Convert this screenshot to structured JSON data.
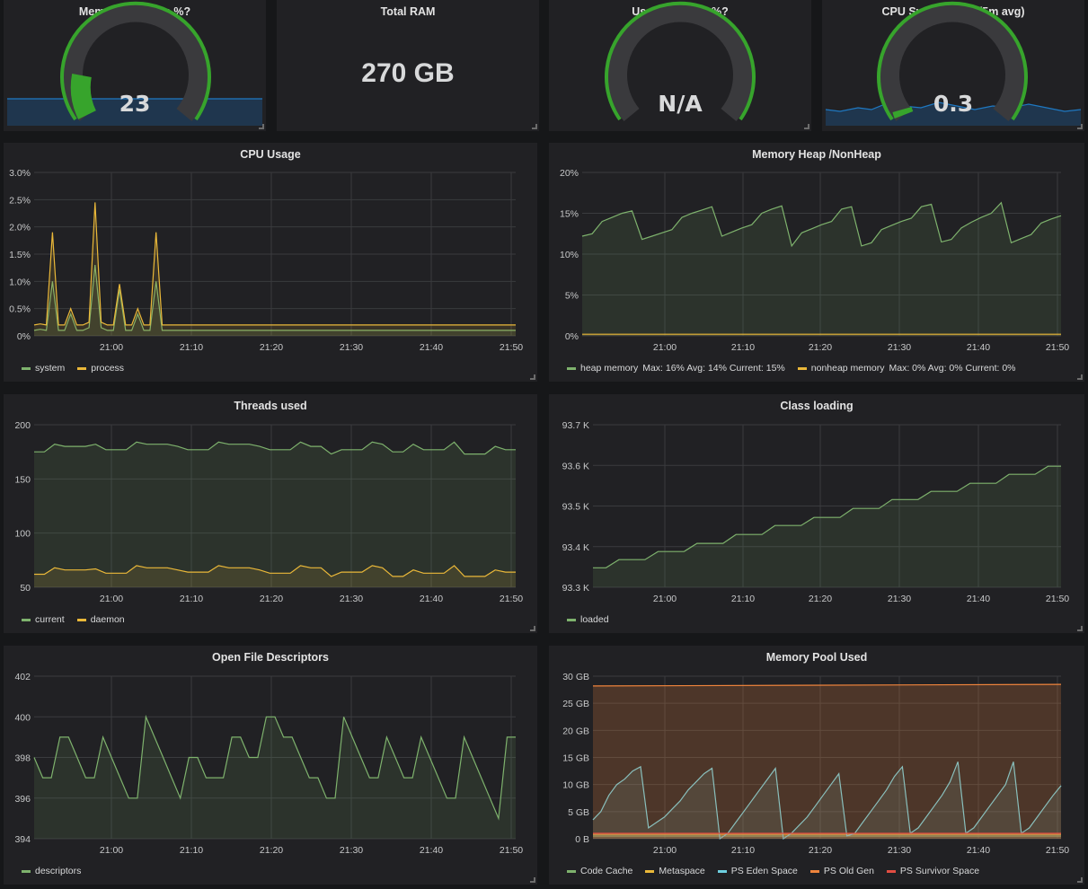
{
  "colors": {
    "green": "#7eb26d",
    "yellow": "#eab839",
    "cyan": "#6ed0e0",
    "orange": "#ef843c",
    "red": "#e24d42",
    "gauge_green": "#37a42c",
    "sparkline_blue": "#1f78c1"
  },
  "stats": {
    "memory_usage": {
      "title": "Memory usage in %?",
      "value": "23",
      "gauge_fraction": 0.23
    },
    "total_ram": {
      "title": "Total RAM",
      "value": "270 GB"
    },
    "used_swap": {
      "title": "Used SWAP in %?",
      "value": "N/A"
    },
    "cpu_load": {
      "title": "CPU System Load(5m avg)",
      "value": "0.3",
      "gauge_fraction": 0.04
    }
  },
  "chart_data": [
    {
      "id": "cpu",
      "title": "CPU Usage",
      "type": "line",
      "ylim": [
        0,
        3.0
      ],
      "yticks": [
        "0%",
        "0.5%",
        "1.0%",
        "1.5%",
        "2.0%",
        "2.5%",
        "3.0%"
      ],
      "xticks": [
        "21:00",
        "21:10",
        "21:20",
        "21:30",
        "21:40",
        "21:50"
      ],
      "series": [
        {
          "name": "system",
          "color": "#7eb26d",
          "values": [
            0.1,
            0.12,
            0.1,
            1.0,
            0.1,
            0.1,
            0.4,
            0.1,
            0.1,
            0.15,
            1.3,
            0.15,
            0.1,
            0.1,
            0.85,
            0.1,
            0.1,
            0.4,
            0.1,
            0.1,
            1.0,
            0.1,
            0.1,
            0.1,
            0.1,
            0.1,
            0.1,
            0.1,
            0.1,
            0.1,
            0.1,
            0.1,
            0.1,
            0.1,
            0.1,
            0.1,
            0.1,
            0.1,
            0.1,
            0.1,
            0.1,
            0.1,
            0.1,
            0.1,
            0.1,
            0.1,
            0.1,
            0.1,
            0.1,
            0.1,
            0.1,
            0.1,
            0.1,
            0.1,
            0.1,
            0.1,
            0.1,
            0.1,
            0.1,
            0.1,
            0.1,
            0.1,
            0.1,
            0.1,
            0.1,
            0.1,
            0.1,
            0.1,
            0.1,
            0.1,
            0.1,
            0.1,
            0.1,
            0.1,
            0.1,
            0.1,
            0.1,
            0.1,
            0.1,
            0.1
          ]
        },
        {
          "name": "process",
          "color": "#eab839",
          "values": [
            0.2,
            0.22,
            0.2,
            1.9,
            0.2,
            0.2,
            0.5,
            0.2,
            0.2,
            0.25,
            2.45,
            0.25,
            0.2,
            0.2,
            0.95,
            0.2,
            0.2,
            0.5,
            0.2,
            0.2,
            1.9,
            0.2,
            0.2,
            0.2,
            0.2,
            0.2,
            0.2,
            0.2,
            0.2,
            0.2,
            0.2,
            0.2,
            0.2,
            0.2,
            0.2,
            0.2,
            0.2,
            0.2,
            0.2,
            0.2,
            0.2,
            0.2,
            0.2,
            0.2,
            0.2,
            0.2,
            0.2,
            0.2,
            0.2,
            0.2,
            0.2,
            0.2,
            0.2,
            0.2,
            0.2,
            0.2,
            0.2,
            0.2,
            0.2,
            0.2,
            0.2,
            0.2,
            0.2,
            0.2,
            0.2,
            0.2,
            0.2,
            0.2,
            0.2,
            0.2,
            0.2,
            0.2,
            0.2,
            0.2,
            0.2,
            0.2,
            0.2,
            0.2,
            0.2,
            0.2
          ]
        }
      ]
    },
    {
      "id": "heap",
      "title": "Memory Heap /NonHeap",
      "type": "area",
      "ylim": [
        0,
        20
      ],
      "yticks": [
        "0%",
        "5%",
        "10%",
        "15%",
        "20%"
      ],
      "xticks": [
        "21:00",
        "21:10",
        "21:20",
        "21:30",
        "21:40",
        "21:50"
      ],
      "series": [
        {
          "name": "heap memory",
          "color": "#7eb26d",
          "stats": "Max: 16%  Avg: 14%  Current: 15%",
          "values": [
            12.2,
            12.5,
            14.0,
            14.5,
            15.0,
            15.3,
            11.8,
            12.2,
            12.6,
            13.0,
            14.5,
            15.0,
            15.4,
            15.8,
            12.2,
            12.7,
            13.2,
            13.6,
            15.0,
            15.5,
            15.9,
            11.0,
            12.6,
            13.1,
            13.6,
            14.0,
            15.5,
            15.8,
            11.0,
            11.4,
            13.0,
            13.5,
            14.0,
            14.4,
            15.8,
            16.1,
            11.5,
            11.8,
            13.2,
            13.9,
            14.5,
            15.0,
            16.3,
            11.4,
            11.9,
            12.4,
            13.8,
            14.3,
            14.7
          ]
        },
        {
          "name": "nonheap memory",
          "color": "#eab839",
          "stats": "Max: 0%  Avg: 0%  Current: 0%",
          "values": [
            0.2,
            0.2
          ]
        }
      ]
    },
    {
      "id": "threads",
      "title": "Threads used",
      "type": "area",
      "ylim": [
        50,
        200
      ],
      "yticks": [
        "50",
        "100",
        "150",
        "200"
      ],
      "xticks": [
        "21:00",
        "21:10",
        "21:20",
        "21:30",
        "21:40",
        "21:50"
      ],
      "series": [
        {
          "name": "current",
          "color": "#7eb26d",
          "values": [
            175,
            175,
            182,
            180,
            180,
            180,
            182,
            177,
            177,
            177,
            184,
            182,
            182,
            182,
            180,
            177,
            177,
            177,
            184,
            182,
            182,
            182,
            180,
            177,
            177,
            177,
            184,
            180,
            180,
            173,
            177,
            177,
            177,
            184,
            182,
            175,
            175,
            182,
            177,
            177,
            177,
            184,
            173,
            173,
            173,
            180,
            177,
            177
          ]
        },
        {
          "name": "daemon",
          "color": "#eab839",
          "values": [
            62,
            62,
            68,
            66,
            66,
            66,
            67,
            63,
            63,
            63,
            70,
            68,
            68,
            68,
            66,
            64,
            64,
            64,
            70,
            68,
            68,
            68,
            66,
            63,
            63,
            63,
            70,
            68,
            68,
            60,
            64,
            64,
            64,
            70,
            68,
            60,
            60,
            66,
            63,
            63,
            63,
            70,
            60,
            60,
            60,
            66,
            64,
            64
          ]
        }
      ]
    },
    {
      "id": "classes",
      "title": "Class loading",
      "type": "area",
      "ylim": [
        93300,
        93700
      ],
      "yticks": [
        "93.3 K",
        "93.4 K",
        "93.5 K",
        "93.6 K",
        "93.7 K"
      ],
      "xticks": [
        "21:00",
        "21:10",
        "21:20",
        "21:30",
        "21:40",
        "21:50"
      ],
      "series": [
        {
          "name": "loaded",
          "color": "#7eb26d",
          "values": [
            93348,
            93348,
            93368,
            93368,
            93368,
            93388,
            93388,
            93388,
            93408,
            93408,
            93408,
            93430,
            93430,
            93430,
            93452,
            93452,
            93452,
            93472,
            93472,
            93472,
            93494,
            93494,
            93494,
            93516,
            93516,
            93516,
            93536,
            93536,
            93536,
            93556,
            93556,
            93556,
            93578,
            93578,
            93578,
            93598,
            93598
          ]
        }
      ]
    },
    {
      "id": "fds",
      "title": "Open File Descriptors",
      "type": "area",
      "ylim": [
        394,
        402
      ],
      "yticks": [
        "394",
        "396",
        "398",
        "400",
        "402"
      ],
      "xticks": [
        "21:00",
        "21:10",
        "21:20",
        "21:30",
        "21:40",
        "21:50"
      ],
      "series": [
        {
          "name": "descriptors",
          "color": "#7eb26d",
          "values": [
            398,
            397,
            397,
            399,
            399,
            398,
            397,
            397,
            399,
            398,
            397,
            396,
            396,
            400,
            399,
            398,
            397,
            396,
            398,
            398,
            397,
            397,
            397,
            399,
            399,
            398,
            398,
            400,
            400,
            399,
            399,
            398,
            397,
            397,
            396,
            396,
            400,
            399,
            398,
            397,
            397,
            399,
            398,
            397,
            397,
            399,
            398,
            397,
            396,
            396,
            399,
            398,
            397,
            396,
            395,
            399,
            399
          ]
        }
      ]
    },
    {
      "id": "pool",
      "title": "Memory Pool Used",
      "type": "area",
      "ylim": [
        0,
        30
      ],
      "yticks": [
        "0 B",
        "5 GB",
        "10 GB",
        "15 GB",
        "20 GB",
        "25 GB",
        "30 GB"
      ],
      "xticks": [
        "21:00",
        "21:10",
        "21:20",
        "21:30",
        "21:40",
        "21:50"
      ],
      "series": [
        {
          "name": "Code Cache",
          "color": "#7eb26d",
          "values": [
            0.5,
            0.5
          ]
        },
        {
          "name": "Metaspace",
          "color": "#eab839",
          "values": [
            0.8,
            0.8
          ]
        },
        {
          "name": "PS Eden Space",
          "color": "#6ed0e0",
          "values": [
            3.5,
            5,
            8,
            10,
            11,
            12.5,
            13.3,
            2,
            3,
            4,
            5.5,
            7,
            9,
            10.5,
            12,
            13,
            0,
            1,
            3,
            5,
            7,
            9,
            11,
            13,
            0,
            1,
            2.5,
            4,
            6,
            8,
            10,
            12,
            0.5,
            1,
            3,
            5,
            7,
            9,
            11.5,
            13.3,
            1,
            2,
            4,
            6,
            8,
            10.5,
            14.2,
            1,
            2,
            4,
            6,
            8,
            10,
            14.2,
            1,
            2,
            4,
            6,
            8,
            9.8
          ]
        },
        {
          "name": "PS Old Gen",
          "color": "#ef843c",
          "values": [
            28.2,
            28.5
          ]
        },
        {
          "name": "PS Survivor Space",
          "color": "#e24d42",
          "values": [
            1.0,
            1.0
          ]
        }
      ]
    }
  ]
}
